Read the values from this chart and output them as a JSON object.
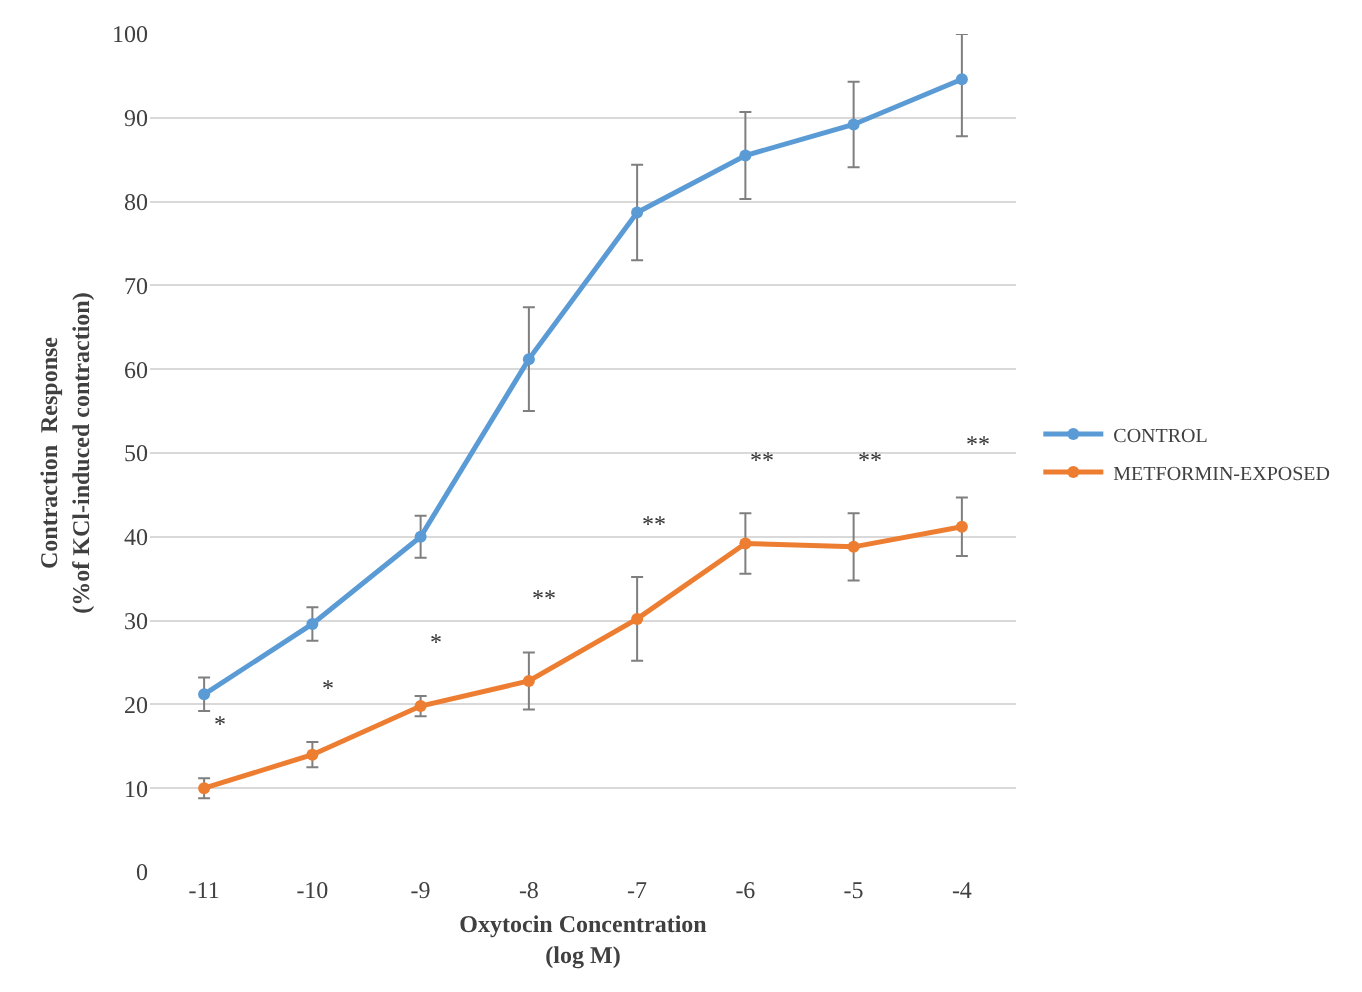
{
  "chart_data": {
    "type": "line",
    "xlabel": "Oxytocin Concentration\n(log M)",
    "ylabel": "Contraction  Response\n(%of KCl-induced contraction)",
    "x": [
      -11,
      -10,
      -9,
      -8,
      -7,
      -6,
      -5,
      -4
    ],
    "series": [
      {
        "name": "CONTROL",
        "color": "#5b9bd5",
        "values": [
          21.2,
          29.6,
          40,
          61.2,
          78.7,
          85.5,
          89.2,
          94.6
        ],
        "errors": [
          2,
          2,
          2.5,
          6.2,
          5.7,
          5.2,
          5.1,
          [
            87.8,
            100
          ]
        ]
      },
      {
        "name": "METFORMIN-EXPOSED",
        "color": "#ed7d31",
        "values": [
          10,
          14,
          19.8,
          22.8,
          30.2,
          39.2,
          38.8,
          41.2
        ],
        "errors": [
          1.2,
          1.5,
          1.2,
          3.4,
          5,
          3.6,
          4,
          3.5
        ]
      }
    ],
    "annotations": [
      "*",
      "*",
      "*",
      "**",
      "**",
      "**",
      "**",
      "**"
    ],
    "xlim": [
      -11.5,
      -3.5
    ],
    "xticks": [
      -11,
      -10,
      -9,
      -8,
      -7,
      -6,
      -5,
      -4
    ],
    "ylim": [
      0,
      100
    ],
    "yticks": [
      0,
      10,
      20,
      30,
      40,
      50,
      60,
      70,
      80,
      90,
      100
    ],
    "grid": "y",
    "legend": "right",
    "marker": "circle",
    "line_style": "solid"
  }
}
